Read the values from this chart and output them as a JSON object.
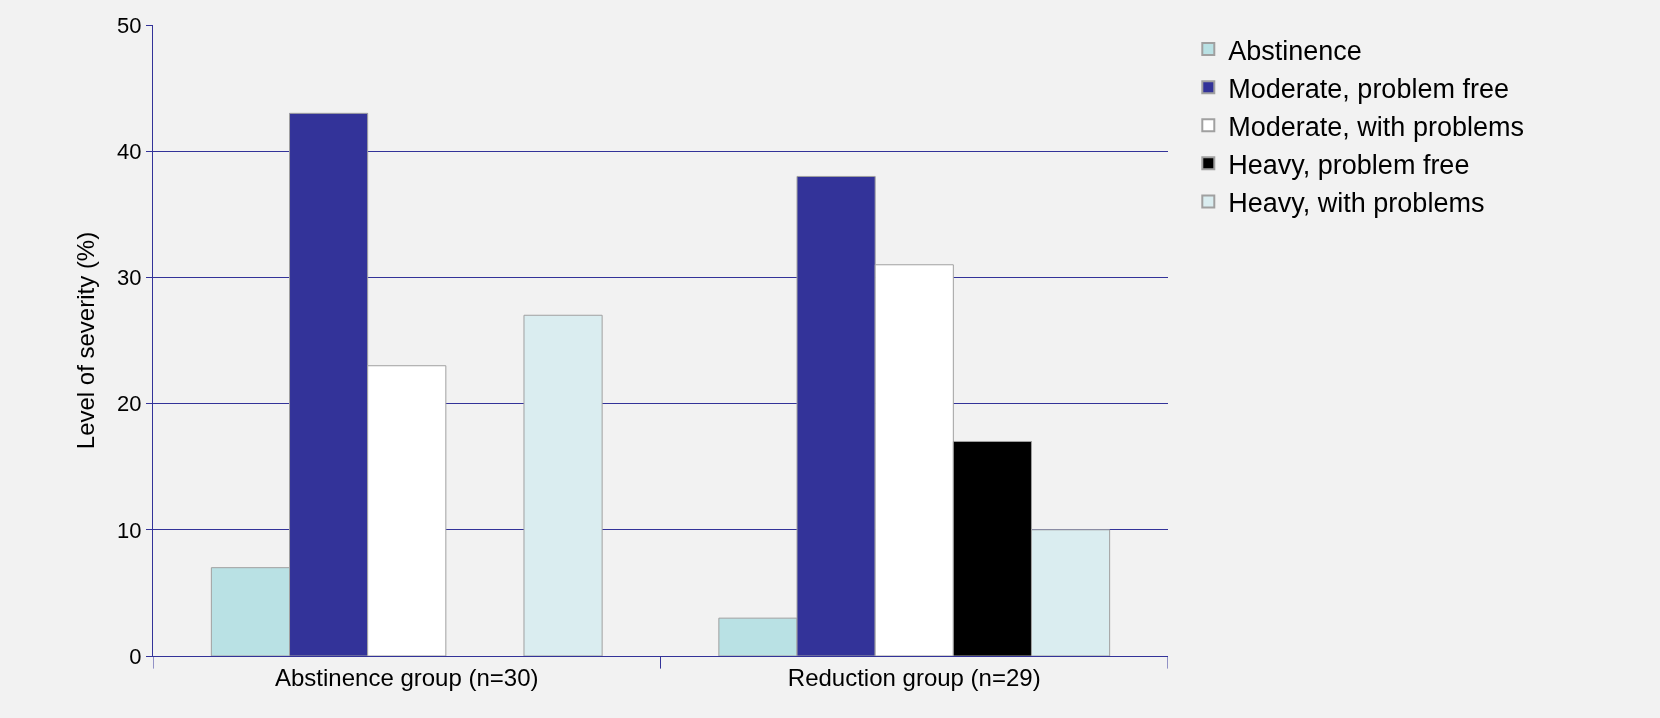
{
  "chart_data": {
    "type": "bar",
    "ylabel": "Level of severity (%)",
    "categories": [
      "Abstinence group (n=30)",
      "Reduction group (n=29)"
    ],
    "series": [
      {
        "name": "Abstinence",
        "color": "#b9e1e4",
        "values": [
          7,
          3
        ]
      },
      {
        "name": "Moderate, problem free",
        "color": "#333399",
        "values": [
          43,
          38
        ]
      },
      {
        "name": "Moderate, with problems",
        "color": "#ffffff",
        "values": [
          23,
          31
        ]
      },
      {
        "name": "Heavy, problem free",
        "color": "#000000",
        "values": [
          null,
          17
        ]
      },
      {
        "name": "Heavy, with problems",
        "color": "#daedf0",
        "values": [
          27,
          10
        ]
      }
    ],
    "ylim": [
      0,
      50
    ],
    "yticks": [
      0,
      10,
      20,
      30,
      40,
      50
    ],
    "grid": "y",
    "legend": "right"
  }
}
